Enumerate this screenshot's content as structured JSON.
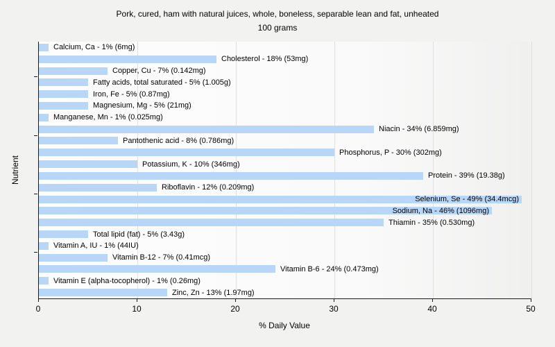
{
  "title": {
    "line1": "Pork, cured, ham with natural juices, whole, boneless, separable lean and fat, unheated",
    "line2": "100 grams"
  },
  "chart_data": {
    "type": "bar",
    "orientation": "horizontal",
    "title": "Pork, cured, ham with natural juices, whole, boneless, separable lean and fat, unheated",
    "subtitle": "100 grams",
    "xlabel": "% Daily Value",
    "ylabel": "Nutrient",
    "xlim": [
      0,
      50
    ],
    "x_tick_labels": [
      "0",
      "10",
      "20",
      "30",
      "40",
      "50"
    ],
    "x_tick_values": [
      0,
      10,
      20,
      30,
      40,
      50
    ],
    "grid": "vertical",
    "legend": "none",
    "colors": {
      "bar": "#b8d6f8",
      "gridline": "#e0e0e0",
      "axis": "#1a1a1a",
      "figure_background": "#f2f2f1",
      "text": "#000000"
    },
    "bars": [
      {
        "label": "Calcium, Ca - 1% (6mg)",
        "nutrient": "Calcium, Ca",
        "percent": 1,
        "amount": "6mg"
      },
      {
        "label": "Cholesterol - 18% (53mg)",
        "nutrient": "Cholesterol",
        "percent": 18,
        "amount": "53mg"
      },
      {
        "label": "Copper, Cu - 7% (0.142mg)",
        "nutrient": "Copper, Cu",
        "percent": 7,
        "amount": "0.142mg"
      },
      {
        "label": "Fatty acids, total saturated - 5% (1.005g)",
        "nutrient": "Fatty acids, total saturated",
        "percent": 5,
        "amount": "1.005g"
      },
      {
        "label": "Iron, Fe - 5% (0.87mg)",
        "nutrient": "Iron, Fe",
        "percent": 5,
        "amount": "0.87mg"
      },
      {
        "label": "Magnesium, Mg - 5% (21mg)",
        "nutrient": "Magnesium, Mg",
        "percent": 5,
        "amount": "21mg"
      },
      {
        "label": "Manganese, Mn - 1% (0.025mg)",
        "nutrient": "Manganese, Mn",
        "percent": 1,
        "amount": "0.025mg"
      },
      {
        "label": "Niacin - 34% (6.859mg)",
        "nutrient": "Niacin",
        "percent": 34,
        "amount": "6.859mg"
      },
      {
        "label": "Pantothenic acid - 8% (0.786mg)",
        "nutrient": "Pantothenic acid",
        "percent": 8,
        "amount": "0.786mg"
      },
      {
        "label": "Phosphorus, P - 30% (302mg)",
        "nutrient": "Phosphorus, P",
        "percent": 30,
        "amount": "302mg"
      },
      {
        "label": "Potassium, K - 10% (346mg)",
        "nutrient": "Potassium, K",
        "percent": 10,
        "amount": "346mg"
      },
      {
        "label": "Protein - 39% (19.38g)",
        "nutrient": "Protein",
        "percent": 39,
        "amount": "19.38g"
      },
      {
        "label": "Riboflavin - 12% (0.209mg)",
        "nutrient": "Riboflavin",
        "percent": 12,
        "amount": "0.209mg"
      },
      {
        "label": "Selenium, Se - 49% (34.4mcg)",
        "nutrient": "Selenium, Se",
        "percent": 49,
        "amount": "34.4mcg"
      },
      {
        "label": "Sodium, Na - 46% (1096mg)",
        "nutrient": "Sodium, Na",
        "percent": 46,
        "amount": "1096mg"
      },
      {
        "label": "Thiamin - 35% (0.530mg)",
        "nutrient": "Thiamin",
        "percent": 35,
        "amount": "0.530mg"
      },
      {
        "label": "Total lipid (fat) - 5% (3.43g)",
        "nutrient": "Total lipid (fat)",
        "percent": 5,
        "amount": "3.43g"
      },
      {
        "label": "Vitamin A, IU - 1% (44IU)",
        "nutrient": "Vitamin A, IU",
        "percent": 1,
        "amount": "44IU"
      },
      {
        "label": "Vitamin B-12 - 7% (0.41mcg)",
        "nutrient": "Vitamin B-12",
        "percent": 7,
        "amount": "0.41mcg"
      },
      {
        "label": "Vitamin B-6 - 24% (0.473mg)",
        "nutrient": "Vitamin B-6",
        "percent": 24,
        "amount": "0.473mg"
      },
      {
        "label": "Vitamin E (alpha-tocopherol) - 1% (0.26mg)",
        "nutrient": "Vitamin E (alpha-tocopherol)",
        "percent": 1,
        "amount": "0.26mg"
      },
      {
        "label": "Zinc, Zn - 13% (1.97mg)",
        "nutrient": "Zinc, Zn",
        "percent": 13,
        "amount": "1.97mg"
      }
    ]
  }
}
